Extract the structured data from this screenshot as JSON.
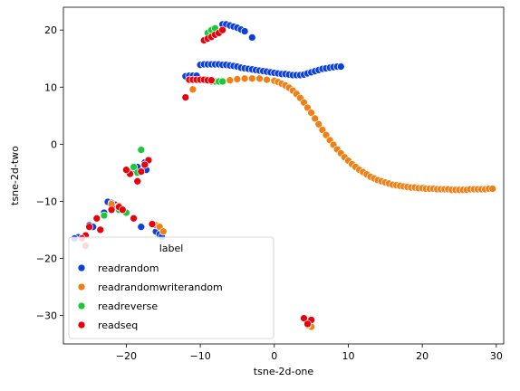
{
  "chart_data": {
    "type": "scatter",
    "title": "",
    "xlabel": "tsne-2d-one",
    "ylabel": "tsne-2d-two",
    "xlim": [
      -28.5,
      31
    ],
    "ylim": [
      -35,
      24
    ],
    "xticks": [
      -20,
      -10,
      0,
      10,
      20,
      30
    ],
    "yticks": [
      -30,
      -20,
      -10,
      0,
      10,
      20
    ],
    "grid": false,
    "legend": {
      "title": "label",
      "placement": "lower-left"
    },
    "series": [
      {
        "name": "readrandom",
        "color": "#0a3fe0",
        "points": [
          [
            -12,
            11.9
          ],
          [
            -11.5,
            12
          ],
          [
            -11,
            12
          ],
          [
            -10.5,
            12
          ],
          [
            -10,
            13.9
          ],
          [
            -9.5,
            14
          ],
          [
            -9,
            14
          ],
          [
            -8.5,
            14
          ],
          [
            -8,
            14
          ],
          [
            -7.5,
            14
          ],
          [
            -7,
            13.9
          ],
          [
            -6.5,
            13.9
          ],
          [
            -6,
            13.8
          ],
          [
            -5.5,
            13.7
          ],
          [
            -5,
            13.6
          ],
          [
            -4.5,
            13.4
          ],
          [
            -4,
            13.3
          ],
          [
            -3.5,
            13.2
          ],
          [
            -3,
            13.1
          ],
          [
            -2.5,
            13
          ],
          [
            -2,
            12.9
          ],
          [
            -1.5,
            12.8
          ],
          [
            -1,
            12.7
          ],
          [
            -0.5,
            12.6
          ],
          [
            0,
            12.5
          ],
          [
            0.5,
            12.4
          ],
          [
            1,
            12.3
          ],
          [
            1.5,
            12.3
          ],
          [
            2,
            12.2
          ],
          [
            2.5,
            12.1
          ],
          [
            3,
            12.1
          ],
          [
            3.5,
            12.1
          ],
          [
            4,
            12.2
          ],
          [
            4.5,
            12.4
          ],
          [
            5,
            12.6
          ],
          [
            5.5,
            12.8
          ],
          [
            6,
            13
          ],
          [
            6.5,
            13.2
          ],
          [
            7,
            13.3
          ],
          [
            7.5,
            13.4
          ],
          [
            8,
            13.5
          ],
          [
            8.5,
            13.6
          ],
          [
            9,
            13.6
          ],
          [
            -7,
            21
          ],
          [
            -6.5,
            21
          ],
          [
            -6,
            20.8
          ],
          [
            -5.5,
            20.6
          ],
          [
            -5,
            20.4
          ],
          [
            -4.5,
            20.1
          ],
          [
            -4,
            19.8
          ],
          [
            -3,
            18.7
          ],
          [
            -22.5,
            -10.1
          ],
          [
            -22,
            -10.3
          ],
          [
            -21.5,
            -10.6
          ],
          [
            -21,
            -10.9
          ],
          [
            -23,
            -12
          ],
          [
            -20.5,
            -11.5
          ],
          [
            -25,
            -14.2
          ],
          [
            -24.5,
            -14.5
          ],
          [
            -26.5,
            -16.3
          ],
          [
            -27,
            -16.5
          ],
          [
            -19,
            -4.5
          ],
          [
            -18.5,
            -4
          ],
          [
            -17.5,
            -3.2
          ],
          [
            -17.3,
            -4.5
          ],
          [
            -18,
            -14.5
          ],
          [
            -16,
            -15.3
          ],
          [
            -15.5,
            -15.8
          ],
          [
            -15.2,
            -16.2
          ],
          [
            4.5,
            -31.5
          ]
        ]
      },
      {
        "name": "readrandomwriterandom",
        "color": "#f07f14",
        "points": [
          [
            -11,
            9.6
          ],
          [
            -6,
            11.2
          ],
          [
            -5,
            11.4
          ],
          [
            -4,
            11.5
          ],
          [
            -3,
            11.5
          ],
          [
            -2,
            11.5
          ],
          [
            -1,
            11.3
          ],
          [
            0,
            11.1
          ],
          [
            0.5,
            10.9
          ],
          [
            1,
            10.6
          ],
          [
            1.5,
            10.3
          ],
          [
            2,
            9.9
          ],
          [
            2.5,
            9.4
          ],
          [
            3,
            8.8
          ],
          [
            3.5,
            8.1
          ],
          [
            4,
            7.3
          ],
          [
            4.5,
            6.4
          ],
          [
            5,
            5.5
          ],
          [
            5.5,
            4.5
          ],
          [
            6,
            3.5
          ],
          [
            6.5,
            2.5
          ],
          [
            7,
            1.6
          ],
          [
            7.5,
            0.7
          ],
          [
            8,
            -0.1
          ],
          [
            8.5,
            -0.9
          ],
          [
            9,
            -1.6
          ],
          [
            9.5,
            -2.3
          ],
          [
            10,
            -2.9
          ],
          [
            10.5,
            -3.5
          ],
          [
            11,
            -4
          ],
          [
            11.5,
            -4.5
          ],
          [
            12,
            -4.9
          ],
          [
            12.5,
            -5.3
          ],
          [
            13,
            -5.7
          ],
          [
            13.5,
            -6
          ],
          [
            14,
            -6.3
          ],
          [
            14.5,
            -6.5
          ],
          [
            15,
            -6.7
          ],
          [
            15.5,
            -6.9
          ],
          [
            16,
            -7.1
          ],
          [
            16.5,
            -7.2
          ],
          [
            17,
            -7.3
          ],
          [
            17.5,
            -7.4
          ],
          [
            18,
            -7.5
          ],
          [
            18.5,
            -7.6
          ],
          [
            19,
            -7.6
          ],
          [
            19.5,
            -7.7
          ],
          [
            20,
            -7.7
          ],
          [
            20.5,
            -7.8
          ],
          [
            21,
            -7.8
          ],
          [
            21.5,
            -7.8
          ],
          [
            22,
            -7.9
          ],
          [
            22.5,
            -7.9
          ],
          [
            23,
            -7.9
          ],
          [
            23.5,
            -7.9
          ],
          [
            24,
            -8
          ],
          [
            24.5,
            -8
          ],
          [
            25,
            -8
          ],
          [
            25.5,
            -8
          ],
          [
            26,
            -8
          ],
          [
            26.5,
            -7.9
          ],
          [
            27,
            -7.9
          ],
          [
            27.5,
            -7.9
          ],
          [
            28,
            -7.9
          ],
          [
            28.5,
            -7.9
          ],
          [
            29,
            -7.8
          ],
          [
            29.5,
            -7.8
          ],
          [
            -16,
            -14.2
          ],
          [
            -15.5,
            -14.5
          ],
          [
            -15,
            -15.3
          ],
          [
            -22,
            -10.5
          ],
          [
            -21,
            -10.8
          ],
          [
            -26,
            -16.5
          ],
          [
            5,
            -32
          ],
          [
            4.5,
            -31.7
          ]
        ]
      },
      {
        "name": "readreverse",
        "color": "#1ac938",
        "points": [
          [
            -9,
            19.5
          ],
          [
            -8.5,
            20
          ],
          [
            -8,
            20.3
          ],
          [
            -8.5,
            11
          ],
          [
            -8,
            11
          ],
          [
            -7.5,
            11
          ],
          [
            -7,
            11
          ],
          [
            -18,
            -1
          ],
          [
            -19,
            -4
          ],
          [
            -18.5,
            -5
          ],
          [
            -21,
            -11.5
          ],
          [
            -20,
            -12
          ],
          [
            -23,
            -12.5
          ],
          [
            -26,
            -16.5
          ]
        ]
      },
      {
        "name": "readseq",
        "color": "#e8000b",
        "points": [
          [
            -9.5,
            18.2
          ],
          [
            -9,
            18.5
          ],
          [
            -8.5,
            18.8
          ],
          [
            -8,
            19.2
          ],
          [
            -7.5,
            19.5
          ],
          [
            -7,
            20
          ],
          [
            -12,
            8.2
          ],
          [
            -11.5,
            11.3
          ],
          [
            -11,
            11.3
          ],
          [
            -10.5,
            11.3
          ],
          [
            -10,
            11.3
          ],
          [
            -9.5,
            11.3
          ],
          [
            -9,
            11.2
          ],
          [
            -8.5,
            11.2
          ],
          [
            -17,
            -2.8
          ],
          [
            -17.5,
            -3.6
          ],
          [
            -18,
            -4.8
          ],
          [
            -19.5,
            -5.2
          ],
          [
            -20,
            -4.5
          ],
          [
            -18.5,
            -6.5
          ],
          [
            -19,
            -13
          ],
          [
            -16.5,
            -14
          ],
          [
            -21,
            -11
          ],
          [
            -22,
            -11.5
          ],
          [
            -20.5,
            -11.5
          ],
          [
            -24,
            -13
          ],
          [
            -23.5,
            -15
          ],
          [
            -25,
            -14.5
          ],
          [
            -25.5,
            -16
          ],
          [
            -26,
            -16.5
          ],
          [
            -25.5,
            -17.8
          ],
          [
            4,
            -30.5
          ],
          [
            5,
            -30.8
          ],
          [
            4.5,
            -31.5
          ]
        ]
      }
    ]
  }
}
